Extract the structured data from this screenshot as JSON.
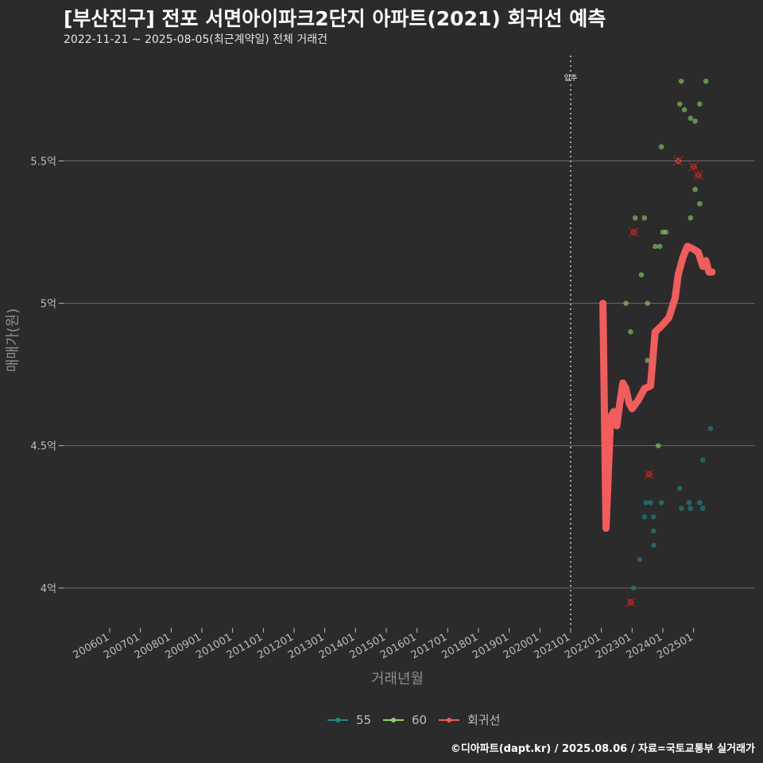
{
  "header": {
    "title": "[부산진구] 전포 서면아이파크2단지 아파트(2021) 회귀선 예측",
    "subtitle": "2022-11-21 ~ 2025-08-05(최근계약일) 전체 거래건"
  },
  "footer": {
    "caption": "©디아파트(dapt.kr) / 2025.08.06 / 자료=국토교통부 실거래가"
  },
  "chart_data": {
    "type": "scatter",
    "xlabel": "거래년월",
    "ylabel": "매매가(원)",
    "ylim": [
      3.86,
      5.87
    ],
    "xlim": [
      2004.5,
      2027.0
    ],
    "y_ticks": [
      {
        "value": 4.0,
        "label": "4억"
      },
      {
        "value": 4.5,
        "label": "4.5억"
      },
      {
        "value": 5.0,
        "label": "5억"
      },
      {
        "value": 5.5,
        "label": "5.5억"
      }
    ],
    "x_ticks": [
      {
        "value": 2006,
        "label": "200601"
      },
      {
        "value": 2007,
        "label": "200701"
      },
      {
        "value": 2008,
        "label": "200801"
      },
      {
        "value": 2009,
        "label": "200901"
      },
      {
        "value": 2010,
        "label": "201001"
      },
      {
        "value": 2011,
        "label": "201101"
      },
      {
        "value": 2012,
        "label": "201201"
      },
      {
        "value": 2013,
        "label": "201301"
      },
      {
        "value": 2014,
        "label": "201401"
      },
      {
        "value": 2015,
        "label": "201501"
      },
      {
        "value": 2016,
        "label": "201601"
      },
      {
        "value": 2017,
        "label": "201701"
      },
      {
        "value": 2018,
        "label": "201801"
      },
      {
        "value": 2019,
        "label": "201901"
      },
      {
        "value": 2020,
        "label": "202001"
      },
      {
        "value": 2021,
        "label": "202101"
      },
      {
        "value": 2022,
        "label": "202201"
      },
      {
        "value": 2023,
        "label": "202301"
      },
      {
        "value": 2024,
        "label": "202401"
      },
      {
        "value": 2025,
        "label": "202501"
      }
    ],
    "annotation": {
      "x": 2021.0,
      "label": "입주"
    },
    "series": [
      {
        "name": "55",
        "color": "#1f8a8a",
        "points": [
          [
            2023.05,
            4.0
          ],
          [
            2023.25,
            4.1
          ],
          [
            2023.4,
            4.25
          ],
          [
            2023.45,
            4.3
          ],
          [
            2023.6,
            4.3
          ],
          [
            2023.7,
            4.2
          ],
          [
            2023.7,
            4.15
          ],
          [
            2023.7,
            4.25
          ],
          [
            2023.95,
            4.3
          ],
          [
            2024.55,
            4.35
          ],
          [
            2024.6,
            4.28
          ],
          [
            2024.85,
            4.3
          ],
          [
            2024.9,
            4.28
          ],
          [
            2025.2,
            4.3
          ],
          [
            2025.3,
            4.28
          ],
          [
            2025.3,
            4.45
          ],
          [
            2025.55,
            4.56
          ]
        ]
      },
      {
        "name": "60",
        "color": "#8fd16b",
        "points": [
          [
            2022.8,
            5.0
          ],
          [
            2022.95,
            4.9
          ],
          [
            2023.1,
            5.3
          ],
          [
            2023.3,
            5.1
          ],
          [
            2023.4,
            5.3
          ],
          [
            2023.5,
            5.0
          ],
          [
            2023.5,
            4.8
          ],
          [
            2023.75,
            5.2
          ],
          [
            2023.85,
            4.5
          ],
          [
            2023.9,
            5.2
          ],
          [
            2023.95,
            5.55
          ],
          [
            2024.0,
            5.25
          ],
          [
            2024.1,
            5.25
          ],
          [
            2024.5,
            5.5
          ],
          [
            2024.55,
            5.7
          ],
          [
            2024.6,
            5.78
          ],
          [
            2024.7,
            5.68
          ],
          [
            2024.9,
            5.3
          ],
          [
            2024.9,
            5.65
          ],
          [
            2025.05,
            5.4
          ],
          [
            2025.05,
            5.64
          ],
          [
            2025.2,
            5.35
          ],
          [
            2025.2,
            5.7
          ],
          [
            2025.4,
            5.78
          ]
        ]
      }
    ],
    "outliers": [
      [
        2022.95,
        3.95
      ],
      [
        2023.05,
        5.25
      ],
      [
        2023.55,
        4.4
      ],
      [
        2024.5,
        5.5
      ],
      [
        2025.0,
        5.48
      ],
      [
        2025.15,
        5.45
      ]
    ],
    "regression": {
      "name": "회귀선",
      "color": "#f25c5c",
      "points": [
        [
          2022.05,
          5.0
        ],
        [
          2022.15,
          4.21
        ],
        [
          2022.3,
          4.6
        ],
        [
          2022.4,
          4.62
        ],
        [
          2022.5,
          4.57
        ],
        [
          2022.6,
          4.65
        ],
        [
          2022.7,
          4.72
        ],
        [
          2022.8,
          4.7
        ],
        [
          2022.9,
          4.65
        ],
        [
          2023.0,
          4.63
        ],
        [
          2023.2,
          4.66
        ],
        [
          2023.4,
          4.7
        ],
        [
          2023.6,
          4.71
        ],
        [
          2023.75,
          4.9
        ],
        [
          2023.95,
          4.92
        ],
        [
          2024.2,
          4.95
        ],
        [
          2024.4,
          5.02
        ],
        [
          2024.5,
          5.1
        ],
        [
          2024.65,
          5.16
        ],
        [
          2024.8,
          5.2
        ],
        [
          2025.0,
          5.19
        ],
        [
          2025.15,
          5.18
        ],
        [
          2025.3,
          5.13
        ],
        [
          2025.4,
          5.15
        ],
        [
          2025.5,
          5.11
        ],
        [
          2025.6,
          5.11
        ]
      ]
    }
  }
}
